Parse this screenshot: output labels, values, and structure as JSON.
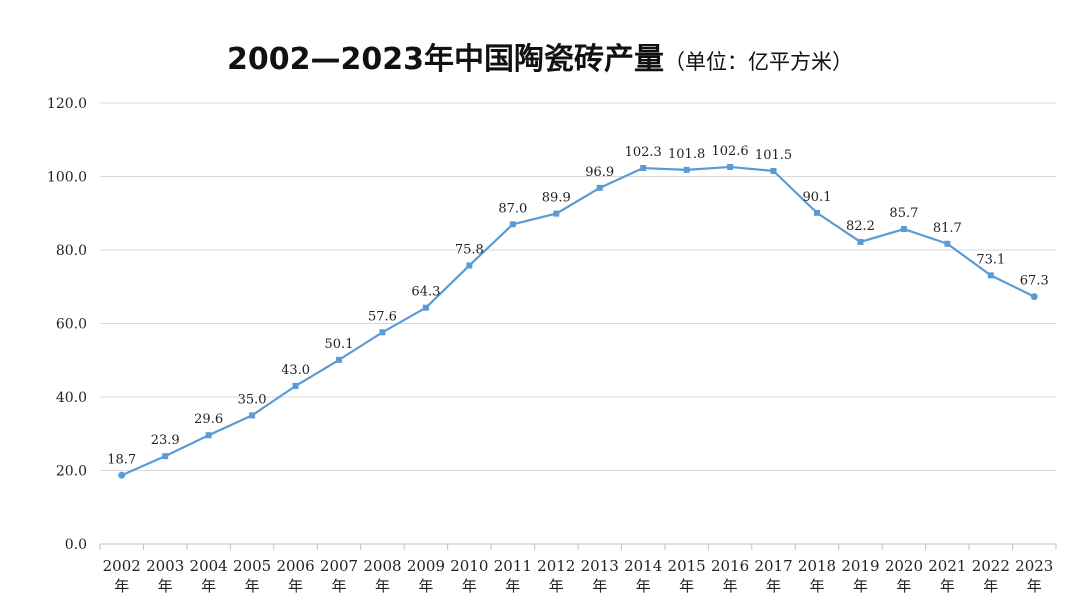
{
  "chart_data": {
    "type": "line",
    "title": "2002—2023年中国陶瓷砖产量",
    "subtitle": "（单位：亿平方米）",
    "categories": [
      "2002年",
      "2003年",
      "2004年",
      "2005年",
      "2006年",
      "2007年",
      "2008年",
      "2009年",
      "2010年",
      "2011年",
      "2012年",
      "2013年",
      "2014年",
      "2015年",
      "2016年",
      "2017年",
      "2018年",
      "2019年",
      "2020年",
      "2021年",
      "2022年",
      "2023年"
    ],
    "series": [
      {
        "name": "陶瓷砖产量",
        "values": [
          18.7,
          23.9,
          29.6,
          35.0,
          43.0,
          50.1,
          57.6,
          64.3,
          75.8,
          87.0,
          89.9,
          96.9,
          102.3,
          101.8,
          102.6,
          101.5,
          90.1,
          82.2,
          85.7,
          81.7,
          73.1,
          67.3
        ],
        "labels": [
          "18.7",
          "23.9",
          "29.6",
          "35.0",
          "43.0",
          "50.1",
          "57.6",
          "64.3",
          "75.8",
          "87.0",
          "89.9",
          "96.9",
          "102.3",
          "101.8",
          "102.6",
          "101.5",
          "90.1",
          "82.2",
          "85.7",
          "81.7",
          "73.1",
          "67.3"
        ],
        "color": "#5b9bd5"
      }
    ],
    "yticks": [
      "0.0",
      "20.0",
      "40.0",
      "60.0",
      "80.0",
      "100.0",
      "120.0"
    ],
    "ylim": [
      0,
      120
    ],
    "xlabel": "",
    "ylabel": "",
    "grid": true,
    "legend": "none",
    "colors": {
      "line": "#5b9bd5",
      "grid": "#d9d9d9",
      "axis": "#bfbfbf"
    }
  }
}
